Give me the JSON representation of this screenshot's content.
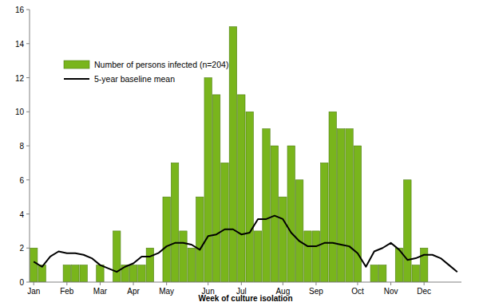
{
  "chart_data": {
    "type": "bar",
    "x_label": "Week of culture isolation",
    "categories": [
      "Jan",
      null,
      null,
      null,
      "Feb",
      null,
      null,
      null,
      "Mar",
      null,
      null,
      null,
      "Apr",
      null,
      null,
      null,
      "May",
      null,
      null,
      null,
      null,
      "Jun",
      null,
      null,
      null,
      "Jul",
      null,
      null,
      null,
      null,
      "Aug",
      null,
      null,
      null,
      "Sep",
      null,
      null,
      null,
      null,
      "Oct",
      null,
      null,
      null,
      "Nov",
      null,
      null,
      null,
      "Dec",
      null,
      null,
      null,
      null
    ],
    "series": [
      {
        "name": "Number of persons infected (n=204)",
        "type": "bar",
        "color": "#79b51c",
        "values": [
          2,
          1,
          0,
          0,
          1,
          1,
          1,
          0,
          1,
          0,
          3,
          1,
          1,
          1,
          2,
          0,
          5,
          7,
          3,
          2,
          5,
          12,
          11,
          7,
          15,
          11,
          10,
          3,
          9,
          8,
          5,
          8,
          6,
          3,
          3,
          7,
          10,
          9,
          9,
          8,
          0,
          1,
          1,
          0,
          2,
          6,
          1,
          2,
          0,
          0,
          0,
          0
        ]
      },
      {
        "name": "5-year baseline mean",
        "type": "line",
        "color": "#000000",
        "values": [
          1.2,
          0.9,
          1.5,
          1.8,
          1.7,
          1.7,
          1.6,
          1.4,
          1.0,
          0.8,
          0.6,
          0.9,
          1.1,
          1.5,
          1.5,
          1.7,
          2.1,
          2.3,
          2.3,
          2.2,
          1.9,
          2.7,
          2.8,
          3.1,
          3.1,
          2.8,
          2.9,
          3.7,
          3.7,
          3.9,
          3.7,
          2.9,
          2.4,
          2.1,
          2.1,
          2.3,
          2.3,
          2.2,
          2.1,
          1.7,
          0.9,
          1.8,
          2.0,
          2.3,
          1.9,
          1.3,
          1.4,
          1.6,
          1.6,
          1.4,
          1.0,
          0.6
        ]
      }
    ],
    "ylim": [
      0,
      16
    ],
    "yticks": [
      0,
      2,
      4,
      6,
      8,
      10,
      12,
      14,
      16
    ],
    "grid": false,
    "legend": "upper left"
  }
}
